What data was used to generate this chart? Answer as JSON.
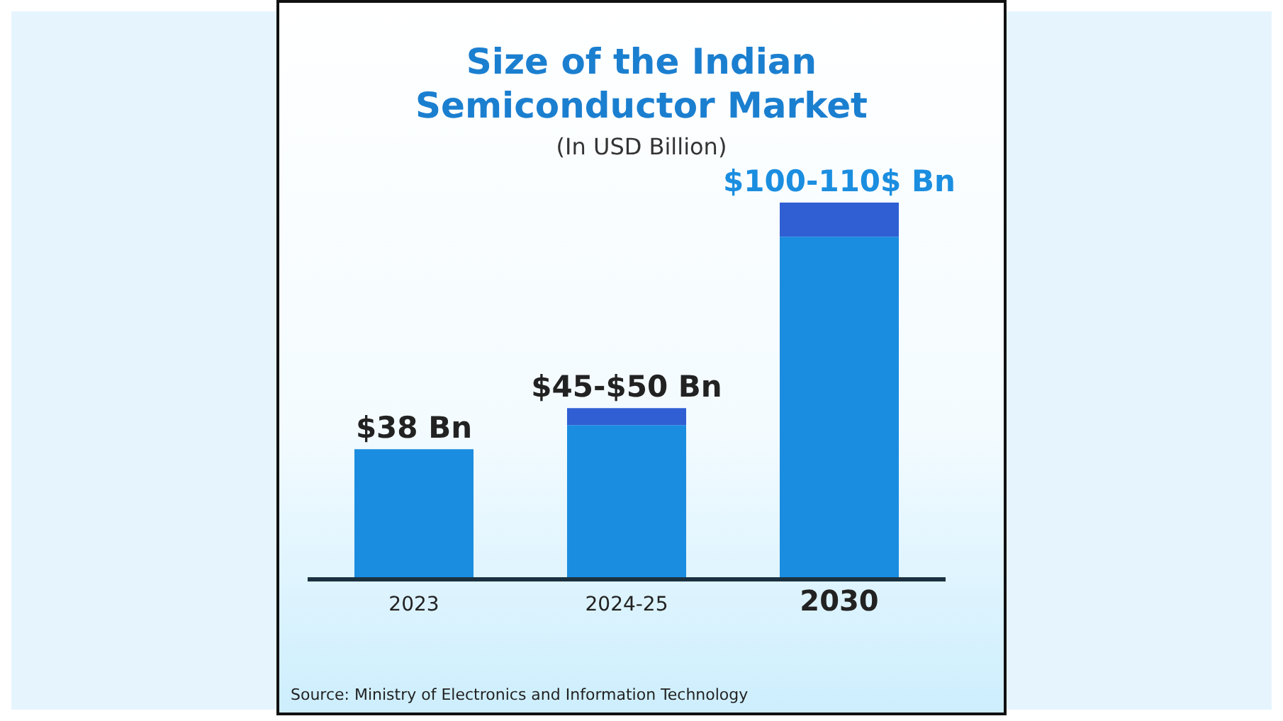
{
  "chart_data": {
    "type": "bar",
    "title": "Size of the Indian Semiconductor Market",
    "subtitle": "(In USD Billion)",
    "categories": [
      "2023",
      "2024-25",
      "2030"
    ],
    "stacked": true,
    "tick_labels": "x",
    "series": [
      {
        "color": "#1a8de0",
        "values": [
          38,
          45,
          100
        ],
        "value_labels": [
          "$38 Bn",
          null,
          null
        ]
      },
      {
        "color": "#2f5fd3",
        "values": [
          null,
          5,
          10
        ],
        "value_labels": [
          null,
          "$45-$50 Bn",
          "$100-110$ Bn"
        ]
      }
    ],
    "annotations": [
      "Source: Ministry of Electronics and Information Technology"
    ]
  }
}
